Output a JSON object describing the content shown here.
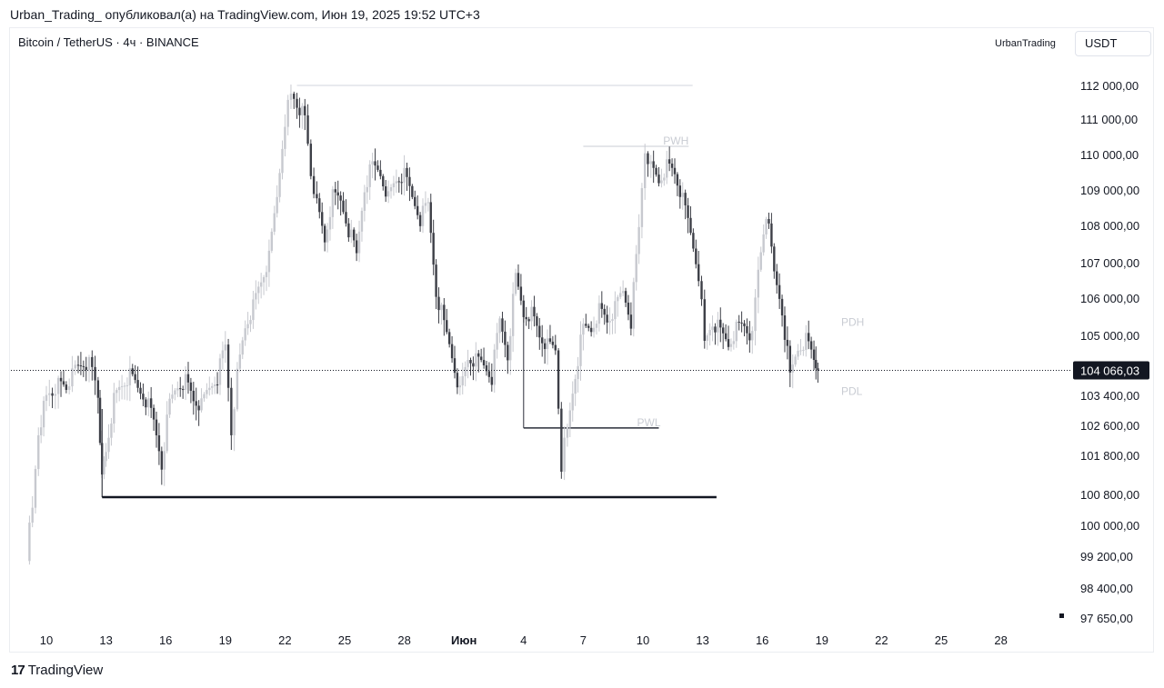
{
  "header": {
    "caption": "Urban_Trading_ опубликовал(а) на TradingView.com, Июн 19, 2025 19:52 UTC+3",
    "symbol": "Bitcoin / TetherUS · 4ч · BINANCE",
    "author_tag": "UrbanTrading",
    "currency": "USDT"
  },
  "footer": {
    "brand": "TradingView",
    "logo_icon": "tradingview-logo-icon"
  },
  "colors": {
    "candle_up": "#c7c9cf",
    "candle_down": "#3d3f47",
    "line_dark": "#131722",
    "label_light": "#c9ccd3",
    "price_badge": "#131722"
  },
  "chart_data": {
    "type": "candlestick",
    "x_tick_labels": [
      "10",
      "13",
      "16",
      "19",
      "22",
      "25",
      "28",
      "Июн",
      "4",
      "7",
      "10",
      "13",
      "16",
      "19",
      "22",
      "25",
      "28"
    ],
    "y_tick_labels": [
      "112 000,00",
      "111 000,00",
      "110 000,00",
      "109 000,00",
      "108 000,00",
      "107 000,00",
      "106 000,00",
      "105 000,00",
      "103 400,00",
      "102 600,00",
      "101 800,00",
      "100 800,00",
      "100 000,00",
      "99 200,00",
      "98 400,00",
      "97 650,00"
    ],
    "y_tick_values": [
      112000,
      111000,
      110000,
      109000,
      108000,
      107000,
      106000,
      105000,
      103400,
      102600,
      101800,
      100800,
      100000,
      99200,
      98400,
      97650
    ],
    "ylim": [
      97650,
      112300
    ],
    "current_price": {
      "value": 104066.03,
      "label": "104 066,03"
    },
    "levels": [
      {
        "name": "",
        "value": 112000,
        "x_from": 22.6,
        "x_to": 42.5
      },
      {
        "name": "PWH",
        "value": 110230,
        "x_from": 37.0,
        "x_to": 42.3
      },
      {
        "name": "PDH",
        "value": 105330
      },
      {
        "name": "PDL",
        "value": 103490
      },
      {
        "name": "PWL",
        "value": 102530,
        "x_from": 34.0,
        "x_to": 40.8
      },
      {
        "name": "",
        "value": 100730,
        "x_from": 12.8,
        "x_to": 43.7
      }
    ],
    "close_series": [
      [
        9.0,
        99300
      ],
      [
        9.3,
        100400
      ],
      [
        9.6,
        102500
      ],
      [
        10.0,
        103300
      ],
      [
        10.3,
        103500
      ],
      [
        10.6,
        103700
      ],
      [
        11.0,
        103600
      ],
      [
        11.3,
        103900
      ],
      [
        11.6,
        104200
      ],
      [
        12.0,
        104300
      ],
      [
        12.3,
        104100
      ],
      [
        12.6,
        103500
      ],
      [
        12.8,
        101200
      ],
      [
        13.0,
        102000
      ],
      [
        13.4,
        103300
      ],
      [
        13.8,
        103700
      ],
      [
        14.2,
        103900
      ],
      [
        14.6,
        103600
      ],
      [
        15.0,
        103300
      ],
      [
        15.4,
        102700
      ],
      [
        15.8,
        101600
      ],
      [
        16.2,
        103200
      ],
      [
        16.6,
        103700
      ],
      [
        17.0,
        103800
      ],
      [
        17.4,
        103300
      ],
      [
        17.8,
        103100
      ],
      [
        18.2,
        103600
      ],
      [
        18.6,
        103900
      ],
      [
        19.0,
        104700
      ],
      [
        19.3,
        102500
      ],
      [
        19.6,
        104000
      ],
      [
        20.0,
        105300
      ],
      [
        20.4,
        105800
      ],
      [
        20.8,
        106500
      ],
      [
        21.2,
        107100
      ],
      [
        21.6,
        108800
      ],
      [
        22.0,
        111000
      ],
      [
        22.3,
        111700
      ],
      [
        22.6,
        111500
      ],
      [
        23.0,
        111000
      ],
      [
        23.3,
        109500
      ],
      [
        23.6,
        108600
      ],
      [
        24.0,
        107600
      ],
      [
        24.4,
        108800
      ],
      [
        24.8,
        108700
      ],
      [
        25.2,
        107900
      ],
      [
        25.6,
        107200
      ],
      [
        26.0,
        109100
      ],
      [
        26.4,
        109700
      ],
      [
        26.8,
        109500
      ],
      [
        27.2,
        108800
      ],
      [
        27.6,
        109300
      ],
      [
        28.0,
        109400
      ],
      [
        28.4,
        108800
      ],
      [
        28.8,
        108200
      ],
      [
        29.2,
        108600
      ],
      [
        29.6,
        106200
      ],
      [
        30.0,
        105300
      ],
      [
        30.4,
        104500
      ],
      [
        30.8,
        103500
      ],
      [
        31.2,
        104400
      ],
      [
        31.6,
        104300
      ],
      [
        32.0,
        104200
      ],
      [
        32.4,
        103900
      ],
      [
        32.8,
        105400
      ],
      [
        33.2,
        104500
      ],
      [
        33.6,
        106600
      ],
      [
        34.0,
        105600
      ],
      [
        34.4,
        105600
      ],
      [
        34.8,
        105000
      ],
      [
        35.2,
        104700
      ],
      [
        35.6,
        104600
      ],
      [
        35.9,
        101600
      ],
      [
        36.2,
        102500
      ],
      [
        36.6,
        104000
      ],
      [
        37.0,
        105200
      ],
      [
        37.4,
        105200
      ],
      [
        37.8,
        105700
      ],
      [
        38.2,
        105400
      ],
      [
        38.6,
        105700
      ],
      [
        39.0,
        106200
      ],
      [
        39.4,
        105400
      ],
      [
        39.8,
        107900
      ],
      [
        40.1,
        110200
      ],
      [
        40.4,
        109700
      ],
      [
        40.8,
        109300
      ],
      [
        41.2,
        109700
      ],
      [
        41.6,
        109500
      ],
      [
        42.0,
        108700
      ],
      [
        42.4,
        107800
      ],
      [
        42.8,
        106700
      ],
      [
        43.1,
        104800
      ],
      [
        43.5,
        105400
      ],
      [
        43.9,
        105100
      ],
      [
        44.3,
        104800
      ],
      [
        44.7,
        105200
      ],
      [
        45.1,
        105300
      ],
      [
        45.5,
        104900
      ],
      [
        45.8,
        106800
      ],
      [
        46.2,
        108400
      ],
      [
        46.6,
        106700
      ],
      [
        47.0,
        105700
      ],
      [
        47.4,
        103900
      ],
      [
        47.8,
        104700
      ],
      [
        48.2,
        104900
      ],
      [
        48.6,
        104400
      ],
      [
        48.8,
        104066
      ]
    ]
  }
}
